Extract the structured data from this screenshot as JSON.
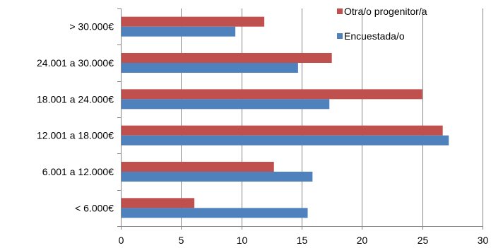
{
  "chart_data": {
    "type": "bar",
    "orientation": "horizontal",
    "categories": [
      "< 6.000€",
      "6.001 a 12.000€",
      "12.001 a 18.000€",
      "18.001 a 24.000€",
      "24.001 a 30.000€",
      "> 30.000€"
    ],
    "series": [
      {
        "name": "Otra/o progenitor/a",
        "color": "#C0504D",
        "values": [
          6.1,
          12.7,
          26.7,
          25.0,
          17.5,
          11.9
        ]
      },
      {
        "name": "Encuestada/o",
        "color": "#4F81BD",
        "values": [
          15.5,
          15.9,
          27.2,
          17.3,
          14.7,
          9.5
        ]
      }
    ],
    "xlim": [
      0,
      30
    ],
    "xticks": [
      "0",
      "5",
      "10",
      "15",
      "20",
      "25",
      "30"
    ],
    "xtick_values": [
      0,
      5,
      10,
      15,
      20,
      25,
      30
    ],
    "grid": true,
    "legend_position": "top-right",
    "title": "",
    "xlabel": "",
    "ylabel": ""
  }
}
